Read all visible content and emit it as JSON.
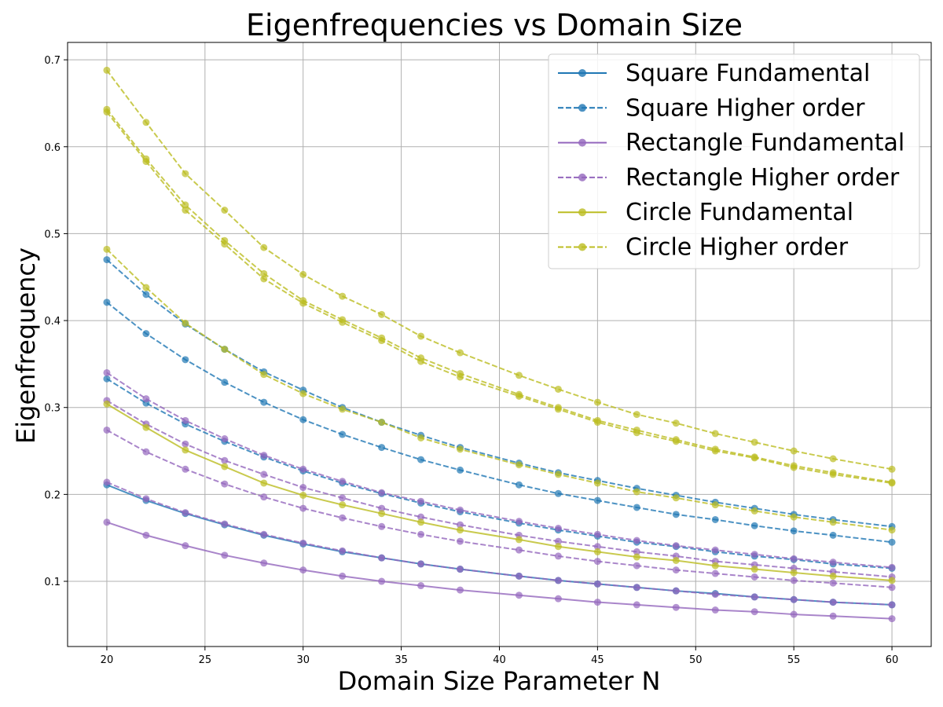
{
  "chart_data": {
    "type": "line",
    "title": "Eigenfrequencies vs Domain Size",
    "xlabel": "Domain Size Parameter N",
    "ylabel": "Eigenfrequency",
    "xlim": [
      18,
      62
    ],
    "ylim": [
      0.025,
      0.72
    ],
    "xticks": [
      20,
      25,
      30,
      35,
      40,
      45,
      50,
      55,
      60
    ],
    "yticks": [
      0.1,
      0.2,
      0.3,
      0.4,
      0.5,
      0.6,
      0.7
    ],
    "xtick_labels": [
      "20",
      "25",
      "30",
      "35",
      "40",
      "45",
      "50",
      "55",
      "60"
    ],
    "ytick_labels": [
      "0.1",
      "0.2",
      "0.3",
      "0.4",
      "0.5",
      "0.6",
      "0.7"
    ],
    "grid": true,
    "legend_position": "top-right",
    "x": [
      20,
      22,
      24,
      26,
      28,
      30,
      32,
      34,
      36,
      38,
      41,
      43,
      45,
      47,
      49,
      51,
      53,
      55,
      57,
      60
    ],
    "colors": {
      "square": "#1f77b4",
      "rectangle": "#9467bd",
      "circle": "#bcbd22"
    },
    "legend": [
      {
        "label": "Square Fundamental",
        "color": "#1f77b4",
        "style": "solid"
      },
      {
        "label": "Square Higher order",
        "color": "#1f77b4",
        "style": "dashed"
      },
      {
        "label": "Rectangle Fundamental",
        "color": "#9467bd",
        "style": "solid"
      },
      {
        "label": "Rectangle Higher order",
        "color": "#9467bd",
        "style": "dashed"
      },
      {
        "label": "Circle Fundamental",
        "color": "#bcbd22",
        "style": "solid"
      },
      {
        "label": "Circle Higher order",
        "color": "#bcbd22",
        "style": "dashed"
      }
    ],
    "series": [
      {
        "group": "square",
        "kind": "fundamental",
        "values": [
          0.211,
          0.193,
          0.178,
          0.165,
          0.153,
          0.143,
          0.134,
          0.127,
          0.12,
          0.114,
          0.106,
          0.101,
          0.097,
          0.093,
          0.089,
          0.086,
          0.082,
          0.079,
          0.076,
          0.073
        ]
      },
      {
        "group": "square",
        "kind": "higher",
        "values": [
          0.333,
          0.305,
          0.281,
          0.261,
          0.243,
          0.227,
          0.213,
          0.201,
          0.19,
          0.18,
          0.167,
          0.159,
          0.152,
          0.145,
          0.14,
          0.134,
          0.129,
          0.125,
          0.12,
          0.115
        ]
      },
      {
        "group": "square",
        "kind": "higher",
        "values": [
          0.421,
          0.385,
          0.355,
          0.329,
          0.306,
          0.286,
          0.269,
          0.254,
          0.24,
          0.228,
          0.211,
          0.201,
          0.193,
          0.185,
          0.177,
          0.171,
          0.164,
          0.158,
          0.153,
          0.145
        ]
      },
      {
        "group": "square",
        "kind": "higher",
        "values": [
          0.47,
          0.43,
          0.396,
          0.367,
          0.341,
          0.32,
          0.3,
          0.283,
          0.268,
          0.254,
          0.236,
          0.225,
          0.216,
          0.207,
          0.199,
          0.191,
          0.184,
          0.177,
          0.171,
          0.163
        ]
      },
      {
        "group": "rectangle",
        "kind": "fundamental",
        "values": [
          0.168,
          0.153,
          0.141,
          0.13,
          0.121,
          0.113,
          0.106,
          0.1,
          0.095,
          0.09,
          0.084,
          0.08,
          0.076,
          0.073,
          0.07,
          0.067,
          0.065,
          0.062,
          0.06,
          0.057
        ]
      },
      {
        "group": "rectangle",
        "kind": "higher",
        "values": [
          0.214,
          0.195,
          0.179,
          0.166,
          0.154,
          0.144,
          0.135,
          0.127,
          0.12,
          0.114,
          0.106,
          0.101,
          0.097,
          0.093,
          0.089,
          0.085,
          0.082,
          0.079,
          0.076,
          0.073
        ]
      },
      {
        "group": "rectangle",
        "kind": "higher",
        "values": [
          0.274,
          0.249,
          0.229,
          0.212,
          0.197,
          0.184,
          0.173,
          0.163,
          0.154,
          0.146,
          0.136,
          0.129,
          0.123,
          0.118,
          0.113,
          0.109,
          0.105,
          0.101,
          0.098,
          0.093
        ]
      },
      {
        "group": "rectangle",
        "kind": "higher",
        "values": [
          0.308,
          0.281,
          0.258,
          0.239,
          0.223,
          0.208,
          0.196,
          0.184,
          0.174,
          0.165,
          0.153,
          0.146,
          0.14,
          0.134,
          0.129,
          0.123,
          0.119,
          0.115,
          0.111,
          0.105
        ]
      },
      {
        "group": "rectangle",
        "kind": "higher",
        "values": [
          0.34,
          0.31,
          0.285,
          0.264,
          0.245,
          0.229,
          0.215,
          0.202,
          0.192,
          0.182,
          0.169,
          0.161,
          0.154,
          0.147,
          0.141,
          0.136,
          0.131,
          0.126,
          0.122,
          0.116
        ]
      },
      {
        "group": "circle",
        "kind": "fundamental",
        "values": [
          0.304,
          0.277,
          0.251,
          0.232,
          0.213,
          0.199,
          0.188,
          0.178,
          0.168,
          0.159,
          0.148,
          0.14,
          0.134,
          0.128,
          0.124,
          0.118,
          0.114,
          0.11,
          0.106,
          0.101
        ]
      },
      {
        "group": "circle",
        "kind": "higher",
        "values": [
          0.482,
          0.438,
          0.397,
          0.367,
          0.338,
          0.316,
          0.298,
          0.283,
          0.265,
          0.252,
          0.234,
          0.223,
          0.213,
          0.203,
          0.196,
          0.188,
          0.181,
          0.174,
          0.168,
          0.159
        ]
      },
      {
        "group": "circle",
        "kind": "higher",
        "values": [
          0.64,
          0.583,
          0.527,
          0.488,
          0.448,
          0.42,
          0.398,
          0.377,
          0.353,
          0.335,
          0.313,
          0.298,
          0.283,
          0.271,
          0.261,
          0.25,
          0.242,
          0.231,
          0.223,
          0.213
        ]
      },
      {
        "group": "circle",
        "kind": "higher",
        "values": [
          0.643,
          0.586,
          0.533,
          0.492,
          0.454,
          0.423,
          0.401,
          0.38,
          0.357,
          0.339,
          0.315,
          0.3,
          0.285,
          0.274,
          0.263,
          0.252,
          0.243,
          0.233,
          0.225,
          0.214
        ]
      },
      {
        "group": "circle",
        "kind": "higher",
        "values": [
          0.688,
          0.628,
          0.569,
          0.527,
          0.484,
          0.453,
          0.428,
          0.407,
          0.382,
          0.363,
          0.337,
          0.321,
          0.306,
          0.292,
          0.282,
          0.27,
          0.26,
          0.25,
          0.241,
          0.229
        ]
      }
    ]
  }
}
